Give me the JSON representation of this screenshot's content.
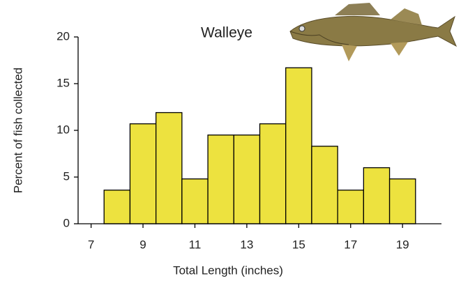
{
  "chart_data": {
    "type": "histogram",
    "title": "Walleye",
    "x_label": "Total Length (inches)",
    "y_label": "Percent of fish collected",
    "bins": [
      7.5,
      8.5,
      9.5,
      10.5,
      11.5,
      12.5,
      13.5,
      14.5,
      15.5,
      16.5,
      17.5,
      18.5,
      19.5
    ],
    "values": [
      3.6,
      10.7,
      11.9,
      4.8,
      9.5,
      9.5,
      10.7,
      16.7,
      8.3,
      3.6,
      6.0,
      4.8
    ],
    "color": "#ede23f",
    "xlim": [
      6.5,
      20.5
    ],
    "xticks": [
      7,
      9,
      11,
      13,
      15,
      17,
      19
    ],
    "ylim": [
      0,
      20
    ],
    "yticks": [
      0,
      5,
      10,
      15,
      20
    ],
    "grid": false
  }
}
